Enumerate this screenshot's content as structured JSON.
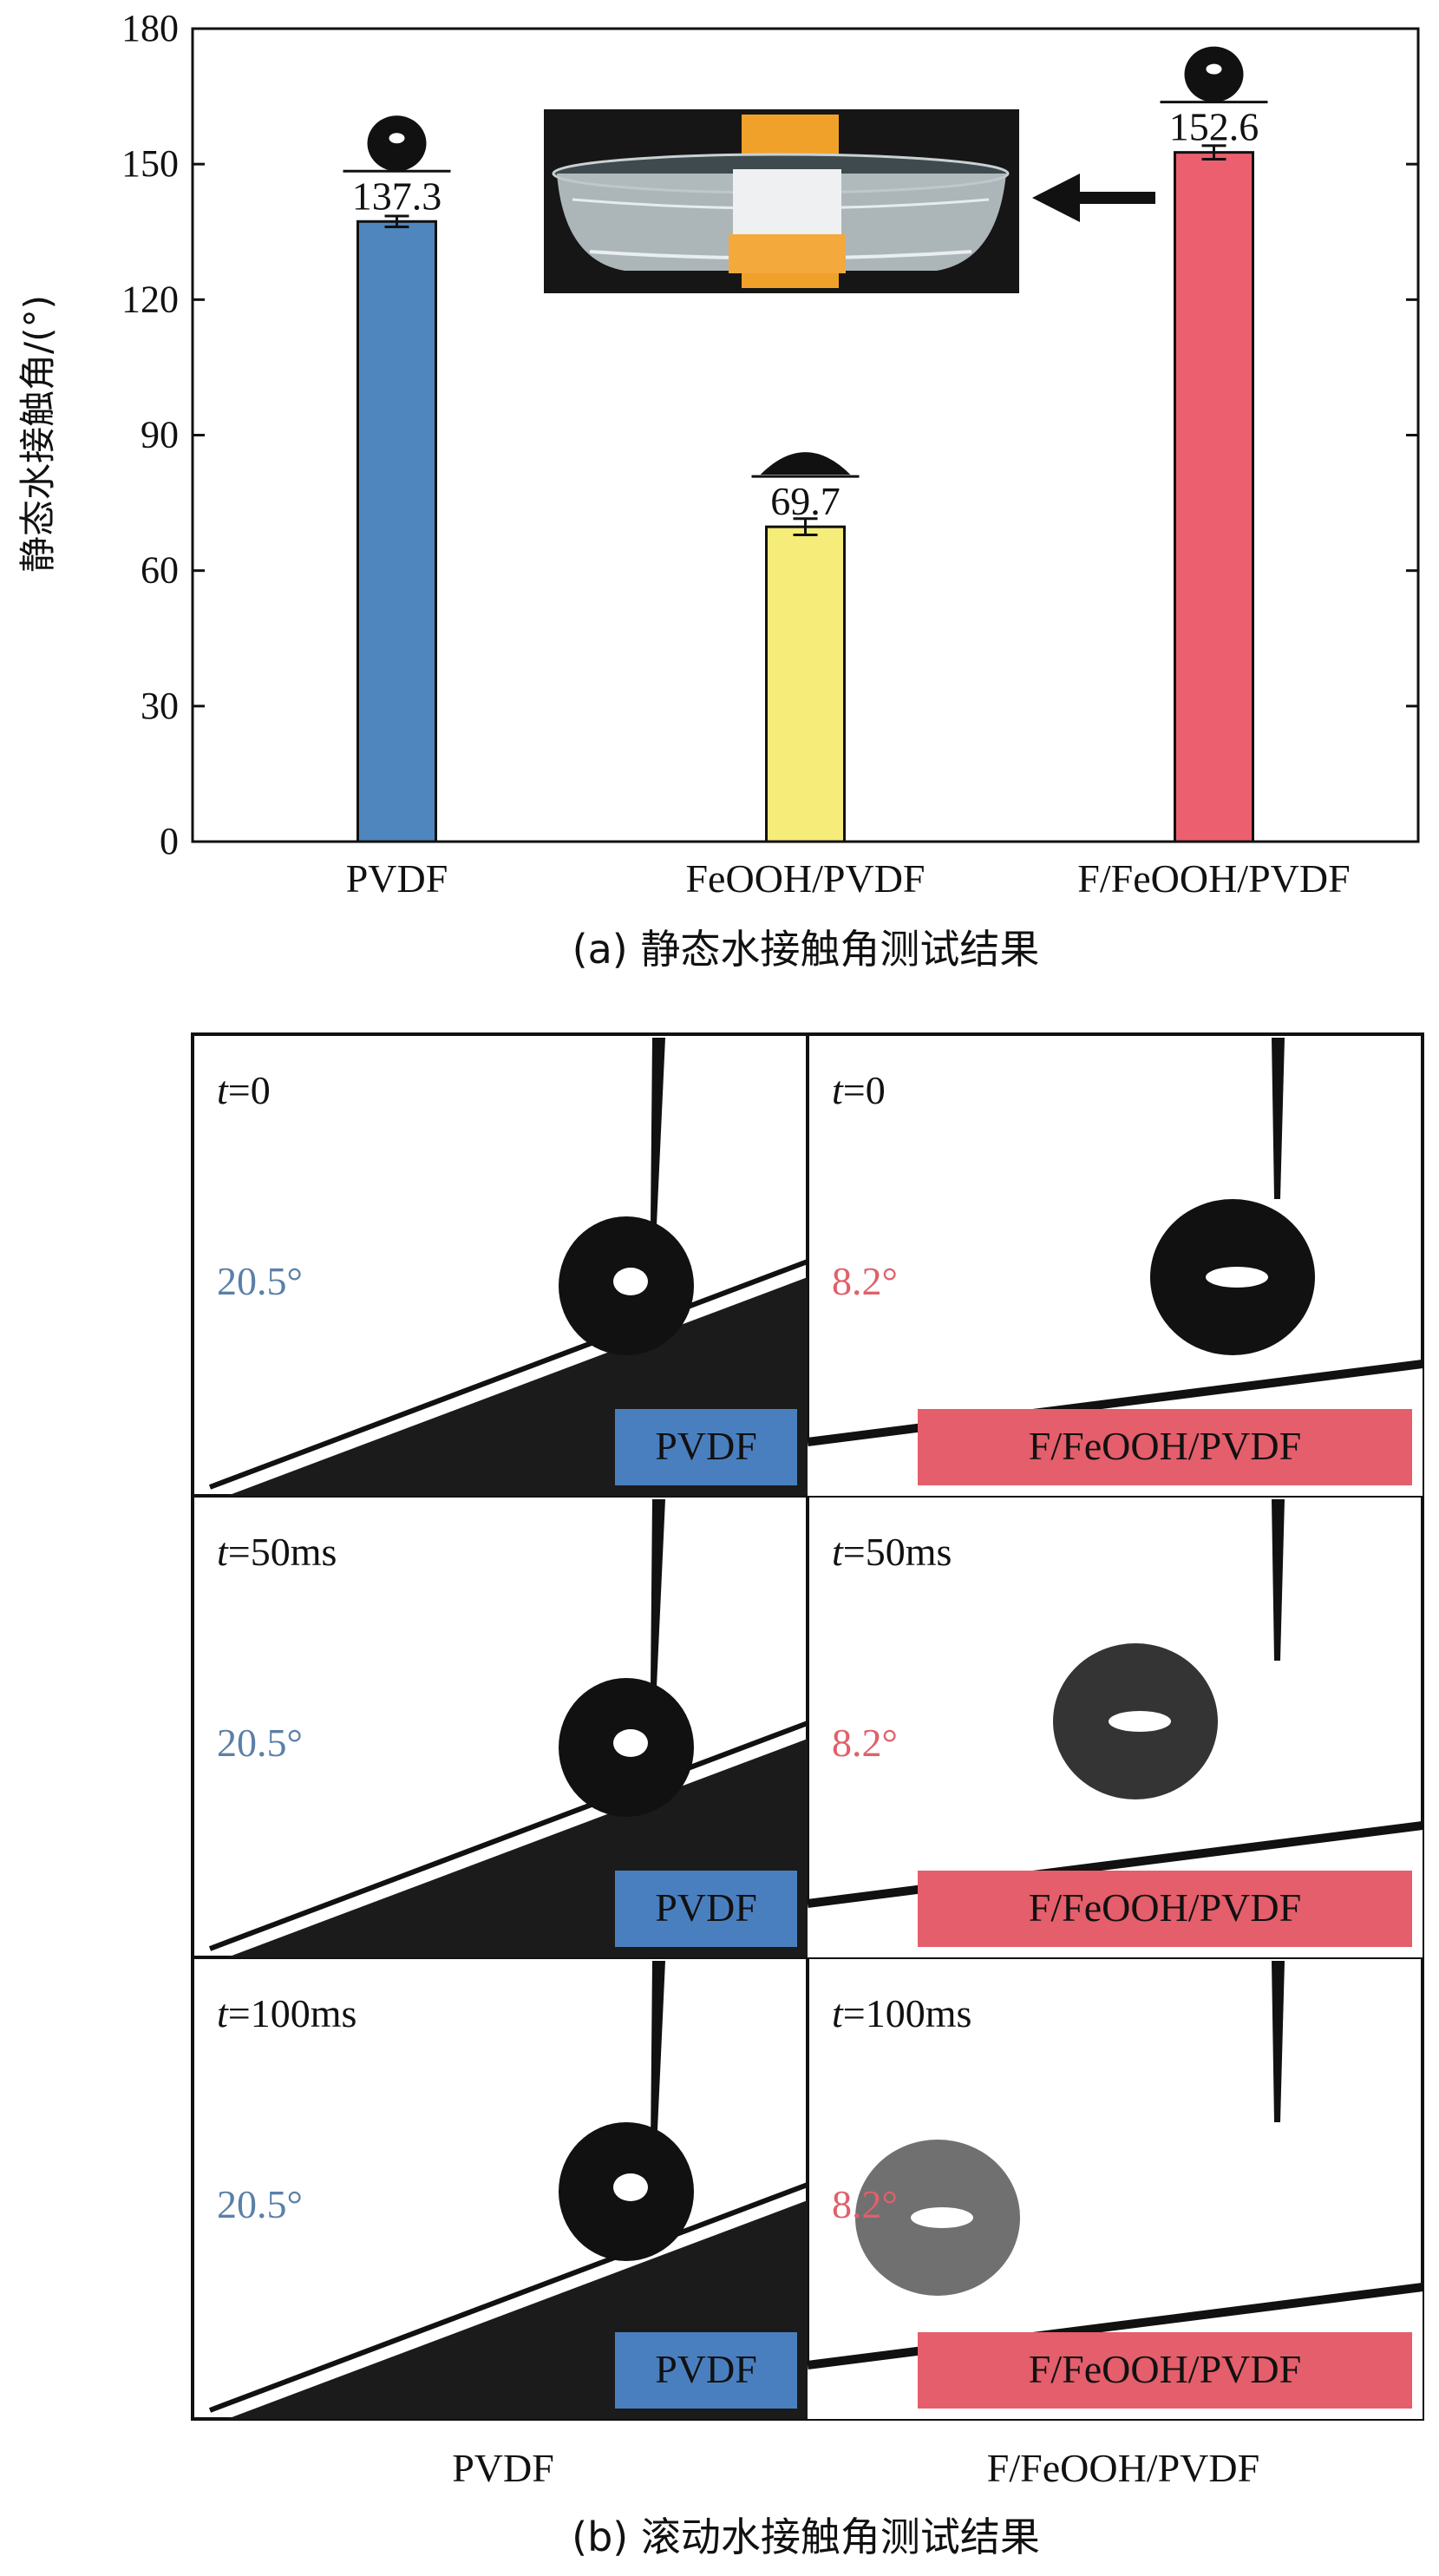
{
  "panel_a": {
    "caption": "(a) 静态水接触角测试结果"
  },
  "panel_b": {
    "caption": "(b) 滚动水接触角测试结果",
    "columns": [
      "PVDF",
      "F/FeOOH/PVDF"
    ],
    "rows": [
      {
        "time_label": "t=0"
      },
      {
        "time_label": "t=50ms"
      },
      {
        "time_label": "t=100ms"
      }
    ],
    "left": {
      "angle": "20.5°",
      "tag": "PVDF",
      "color": "#5b80a8",
      "tag_bg": "#4a7fbf"
    },
    "right": {
      "angle": "8.2°",
      "tag": "F/FeOOH/PVDF",
      "color": "#e0606a",
      "tag_bg": "#e45e6b"
    }
  },
  "chart_data": {
    "type": "bar",
    "categories": [
      "PVDF",
      "FeOOH/PVDF",
      "F/FeOOH/PVDF"
    ],
    "values": [
      137.3,
      69.7,
      152.6
    ],
    "errors": [
      1.2,
      1.8,
      1.5
    ],
    "data_labels": [
      "137.3",
      "69.7",
      "152.6"
    ],
    "colors": [
      "#4e86bd",
      "#f5ec7a",
      "#ec5f6e"
    ],
    "ylabel": "静态水接触角/(°)",
    "ylim": [
      0,
      180
    ],
    "yticks": [
      0,
      30,
      60,
      90,
      120,
      150,
      180
    ],
    "grid": false,
    "legend": "none"
  }
}
